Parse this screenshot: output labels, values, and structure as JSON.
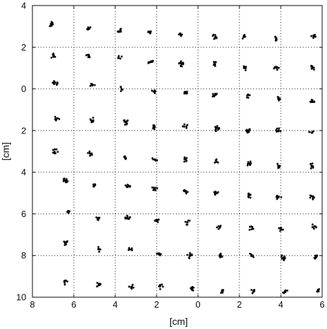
{
  "chart_data": {
    "type": "scatter",
    "title": "",
    "xlabel": "[cm]",
    "ylabel": "[cm]",
    "xlim": [
      -6,
      8
    ],
    "ylim": [
      -10,
      4
    ],
    "x_reversed": true,
    "y_tick_values": [
      4,
      2,
      0,
      -2,
      -4,
      -6,
      -8,
      -10
    ],
    "x_tick_values": [
      8,
      6,
      4,
      2,
      0,
      -2,
      -4,
      -6
    ],
    "xticks": [
      {
        "value": 8,
        "label": "8"
      },
      {
        "value": 6,
        "label": "6"
      },
      {
        "value": 4,
        "label": "4"
      },
      {
        "value": 2,
        "label": "2"
      },
      {
        "value": 0,
        "label": "0"
      },
      {
        "value": -2,
        "label": "2"
      },
      {
        "value": -4,
        "label": "4"
      },
      {
        "value": -6,
        "label": "6"
      }
    ],
    "yticks": [
      {
        "value": 4,
        "label": "4"
      },
      {
        "value": 2,
        "label": "2"
      },
      {
        "value": 0,
        "label": "0"
      },
      {
        "value": -2,
        "label": "2"
      },
      {
        "value": -4,
        "label": "4"
      },
      {
        "value": -6,
        "label": "6"
      },
      {
        "value": -8,
        "label": "8"
      },
      {
        "value": -10,
        "label": "10"
      }
    ],
    "grid": true,
    "grid_style": "dotted",
    "marker_color": "#000000",
    "cluster_rows": [
      [
        [
          7.1,
          3.1
        ],
        [
          5.3,
          2.9
        ],
        [
          3.8,
          2.8
        ],
        [
          2.3,
          2.7
        ],
        [
          0.8,
          2.6
        ],
        [
          -0.8,
          2.5
        ],
        [
          -2.2,
          2.5
        ],
        [
          -3.8,
          2.4
        ],
        [
          -5.6,
          2.5
        ]
      ],
      [
        [
          7.0,
          1.6
        ],
        [
          5.3,
          1.6
        ],
        [
          3.8,
          1.5
        ],
        [
          2.3,
          1.3
        ],
        [
          0.8,
          1.2
        ],
        [
          -0.8,
          1.2
        ],
        [
          -2.3,
          1.0
        ],
        [
          -3.8,
          1.0
        ],
        [
          -5.5,
          1.0
        ]
      ],
      [
        [
          6.9,
          0.3
        ],
        [
          5.1,
          0.2
        ],
        [
          3.7,
          0.0
        ],
        [
          2.1,
          -0.1
        ],
        [
          0.6,
          -0.2
        ],
        [
          -0.8,
          -0.3
        ],
        [
          -2.4,
          -0.3
        ],
        [
          -3.9,
          -0.5
        ],
        [
          -5.5,
          -0.6
        ]
      ],
      [
        [
          6.8,
          -1.4
        ],
        [
          5.1,
          -1.5
        ],
        [
          3.5,
          -1.6
        ],
        [
          2.1,
          -1.8
        ],
        [
          0.6,
          -1.8
        ],
        [
          -0.9,
          -1.9
        ],
        [
          -2.4,
          -2.0
        ],
        [
          -3.9,
          -2.0
        ],
        [
          -5.5,
          -2.1
        ]
      ],
      [
        [
          6.9,
          -3.0
        ],
        [
          5.2,
          -3.1
        ],
        [
          3.5,
          -3.3
        ],
        [
          2.1,
          -3.4
        ],
        [
          0.6,
          -3.4
        ],
        [
          -0.9,
          -3.5
        ],
        [
          -2.5,
          -3.6
        ],
        [
          -3.9,
          -3.7
        ],
        [
          -5.5,
          -3.7
        ]
      ],
      [
        [
          6.4,
          -4.4
        ],
        [
          5.0,
          -4.6
        ],
        [
          3.4,
          -4.7
        ],
        [
          2.1,
          -4.8
        ],
        [
          0.6,
          -4.9
        ],
        [
          -0.9,
          -5.0
        ],
        [
          -2.5,
          -5.1
        ],
        [
          -3.9,
          -5.2
        ],
        [
          -5.5,
          -5.2
        ]
      ],
      [
        [
          6.3,
          -5.9
        ],
        [
          4.8,
          -6.2
        ],
        [
          3.4,
          -6.2
        ],
        [
          2.0,
          -6.3
        ],
        [
          0.5,
          -6.4
        ],
        [
          -1.0,
          -6.6
        ],
        [
          -2.6,
          -6.7
        ],
        [
          -4.0,
          -6.7
        ],
        [
          -5.6,
          -6.6
        ]
      ],
      [
        [
          6.4,
          -7.4
        ],
        [
          4.8,
          -7.7
        ],
        [
          3.3,
          -7.7
        ],
        [
          1.9,
          -7.9
        ],
        [
          0.4,
          -8.0
        ],
        [
          -1.1,
          -8.0
        ],
        [
          -2.6,
          -8.0
        ],
        [
          -4.1,
          -8.1
        ],
        [
          -5.7,
          -8.1
        ]
      ],
      [
        [
          6.4,
          -9.3
        ],
        [
          4.8,
          -9.4
        ],
        [
          3.2,
          -9.5
        ],
        [
          1.8,
          -9.5
        ],
        [
          0.3,
          -9.6
        ],
        [
          -1.2,
          -9.7
        ],
        [
          -2.7,
          -9.7
        ],
        [
          -4.2,
          -9.7
        ],
        [
          -5.8,
          -9.7
        ]
      ]
    ]
  }
}
